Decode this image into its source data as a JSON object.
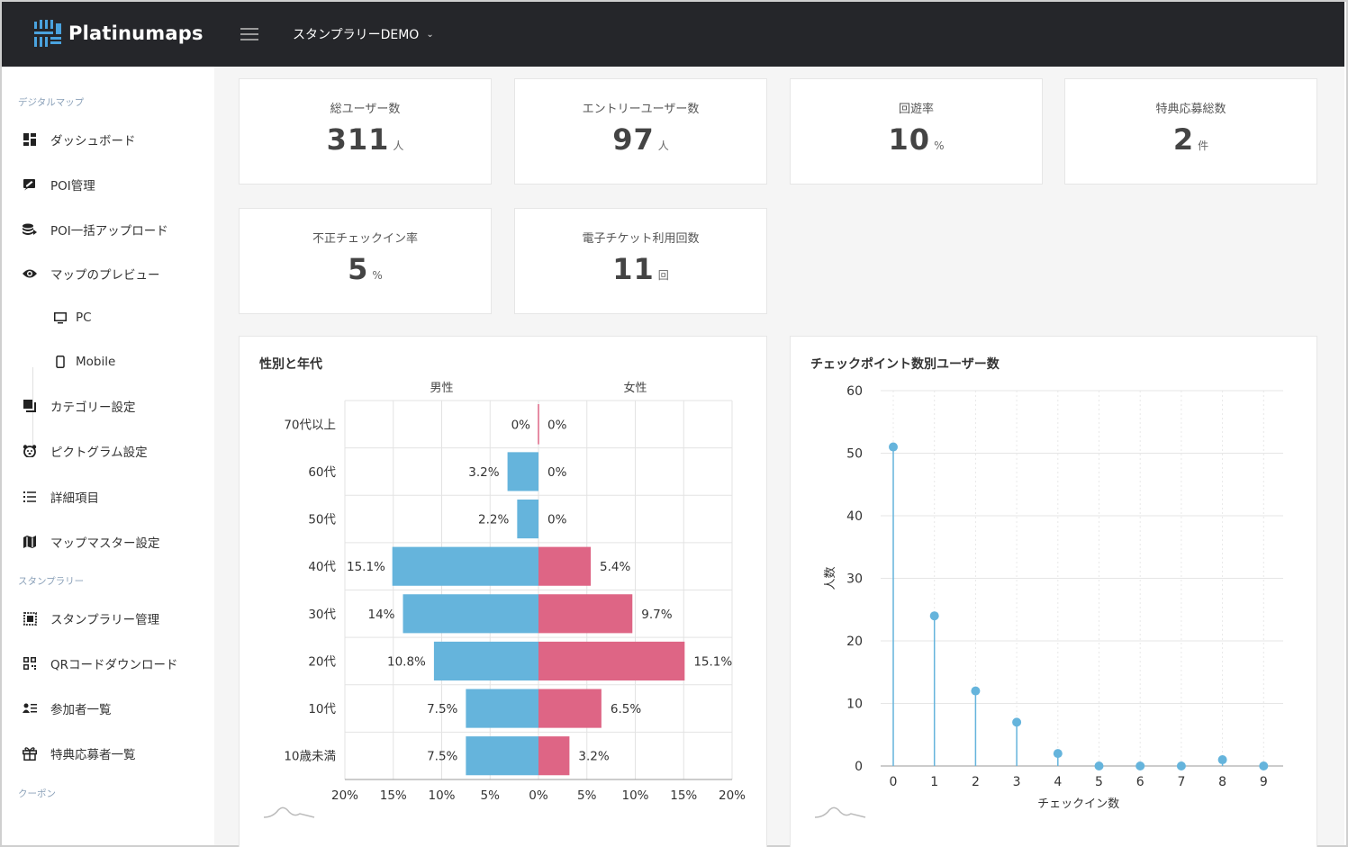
{
  "app": {
    "name": "Platinumaps",
    "project": "スタンプラリーDEMO"
  },
  "colors": {
    "topbar": "#25262a",
    "male": "#65b4dc",
    "female": "#de6585",
    "accent": "#4aa3df"
  },
  "sidebar": {
    "sections": [
      {
        "label": "デジタルマップ"
      },
      {
        "label": "スタンプラリー"
      },
      {
        "label": "クーポン"
      }
    ],
    "items": [
      {
        "label": "ダッシュボード",
        "icon": "dashboard-icon"
      },
      {
        "label": "POI管理",
        "icon": "edit-icon"
      },
      {
        "label": "POI一括アップロード",
        "icon": "database-icon"
      },
      {
        "label": "マップのプレビュー",
        "icon": "eye-icon"
      },
      {
        "label": "PC",
        "icon": "monitor-icon"
      },
      {
        "label": "Mobile",
        "icon": "mobile-icon"
      },
      {
        "label": "カテゴリー設定",
        "icon": "category-icon"
      },
      {
        "label": "ピクトグラム設定",
        "icon": "pictogram-icon"
      },
      {
        "label": "詳細項目",
        "icon": "list-icon"
      },
      {
        "label": "マップマスター設定",
        "icon": "map-icon"
      },
      {
        "label": "スタンプラリー管理",
        "icon": "stamp-icon"
      },
      {
        "label": "QRコードダウンロード",
        "icon": "qr-icon"
      },
      {
        "label": "参加者一覧",
        "icon": "participants-icon"
      },
      {
        "label": "特典応募者一覧",
        "icon": "gift-icon"
      }
    ]
  },
  "stats": [
    {
      "title": "総ユーザー数",
      "value": "311",
      "unit": "人"
    },
    {
      "title": "エントリーユーザー数",
      "value": "97",
      "unit": "人"
    },
    {
      "title": "回遊率",
      "value": "10",
      "unit": "%"
    },
    {
      "title": "特典応募総数",
      "value": "2",
      "unit": "件"
    },
    {
      "title": "不正チェックイン率",
      "value": "5",
      "unit": "%"
    },
    {
      "title": "電子チケット利用回数",
      "value": "11",
      "unit": "回"
    }
  ],
  "chart_data": [
    {
      "type": "bar",
      "title": "性別と年代",
      "categories": [
        "70代以上",
        "60代",
        "50代",
        "40代",
        "30代",
        "20代",
        "10代",
        "10歳未満"
      ],
      "series": [
        {
          "name": "男性",
          "values": [
            0,
            3.2,
            2.2,
            15.1,
            14,
            10.8,
            7.5,
            7.5
          ],
          "labels": [
            "0%",
            "3.2%",
            "2.2%",
            "15.1%",
            "14%",
            "10.8%",
            "7.5%",
            "7.5%"
          ]
        },
        {
          "name": "女性",
          "values": [
            0,
            0,
            0,
            5.4,
            9.7,
            15.1,
            6.5,
            3.2
          ],
          "labels": [
            "0%",
            "0%",
            "0%",
            "5.4%",
            "9.7%",
            "15.1%",
            "6.5%",
            "3.2%"
          ]
        }
      ],
      "xlim": [
        -20,
        20
      ],
      "xticks": [
        "20%",
        "15%",
        "10%",
        "5%",
        "0%",
        "5%",
        "10%",
        "15%",
        "20%"
      ]
    },
    {
      "type": "scatter",
      "title": "チェックポイント数別ユーザー数",
      "x": [
        0,
        1,
        2,
        3,
        4,
        5,
        6,
        7,
        8,
        9
      ],
      "y": [
        51,
        24,
        12,
        7,
        2,
        0,
        0,
        0,
        1,
        0
      ],
      "xlabel": "チェックイン数",
      "ylabel": "人数",
      "ylim": [
        0,
        60
      ],
      "yticks": [
        0,
        10,
        20,
        30,
        40,
        50,
        60
      ]
    }
  ]
}
